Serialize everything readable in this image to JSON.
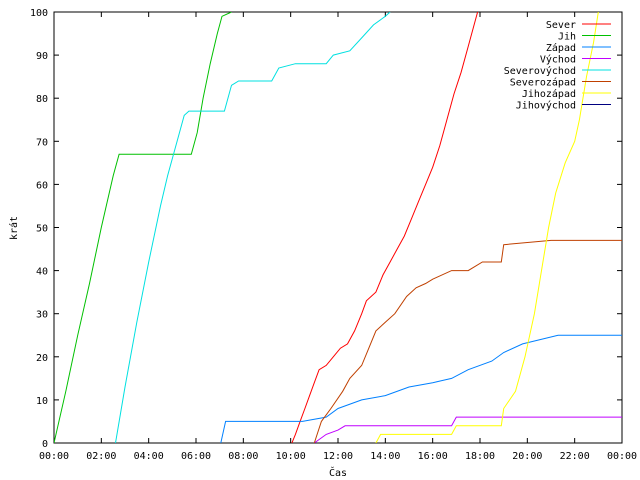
{
  "chart_data": {
    "type": "line",
    "xlabel": "Čas",
    "ylabel": "krát",
    "xlim": [
      0,
      24
    ],
    "ylim": [
      0,
      100
    ],
    "x_ticks": [
      "00:00",
      "02:00",
      "04:00",
      "06:00",
      "08:00",
      "10:00",
      "12:00",
      "14:00",
      "16:00",
      "18:00",
      "20:00",
      "22:00",
      "00:00"
    ],
    "y_ticks": [
      0,
      10,
      20,
      30,
      40,
      50,
      60,
      70,
      80,
      90,
      100
    ],
    "grid": false,
    "legend_position": "top-right",
    "series": [
      {
        "name": "Sever",
        "color": "#ff0000",
        "points": [
          [
            10.05,
            0
          ],
          [
            10.2,
            2
          ],
          [
            10.4,
            5
          ],
          [
            10.6,
            8
          ],
          [
            10.8,
            11
          ],
          [
            11.0,
            14
          ],
          [
            11.2,
            17
          ],
          [
            11.5,
            18
          ],
          [
            11.8,
            20
          ],
          [
            12.1,
            22
          ],
          [
            12.4,
            23
          ],
          [
            12.7,
            26
          ],
          [
            13.0,
            30
          ],
          [
            13.2,
            33
          ],
          [
            13.6,
            35
          ],
          [
            13.9,
            39
          ],
          [
            14.2,
            42
          ],
          [
            14.5,
            45
          ],
          [
            14.8,
            48
          ],
          [
            15.1,
            52
          ],
          [
            15.4,
            56
          ],
          [
            15.7,
            60
          ],
          [
            16.0,
            64
          ],
          [
            16.3,
            69
          ],
          [
            16.6,
            75
          ],
          [
            16.9,
            81
          ],
          [
            17.2,
            86
          ],
          [
            17.5,
            92
          ],
          [
            17.9,
            100
          ]
        ]
      },
      {
        "name": "Jih",
        "color": "#00c000",
        "points": [
          [
            0.0,
            0
          ],
          [
            0.5,
            12
          ],
          [
            1.0,
            25
          ],
          [
            1.5,
            37
          ],
          [
            2.0,
            50
          ],
          [
            2.5,
            62
          ],
          [
            2.75,
            67
          ],
          [
            5.8,
            67
          ],
          [
            6.05,
            72
          ],
          [
            6.3,
            80
          ],
          [
            6.6,
            88
          ],
          [
            6.9,
            95
          ],
          [
            7.1,
            99
          ],
          [
            7.5,
            100
          ]
        ]
      },
      {
        "name": "Západ",
        "color": "#0080ff",
        "points": [
          [
            7.05,
            0
          ],
          [
            7.25,
            5
          ],
          [
            10.5,
            5
          ],
          [
            11.5,
            6
          ],
          [
            12.0,
            8
          ],
          [
            13.0,
            10
          ],
          [
            14.0,
            11
          ],
          [
            15.0,
            13
          ],
          [
            16.0,
            14
          ],
          [
            16.8,
            15
          ],
          [
            17.5,
            17
          ],
          [
            18.5,
            19
          ],
          [
            19.0,
            21
          ],
          [
            19.8,
            23
          ],
          [
            21.3,
            25
          ],
          [
            24.0,
            25
          ]
        ]
      },
      {
        "name": "Východ",
        "color": "#c000ff",
        "points": [
          [
            11.0,
            0
          ],
          [
            11.5,
            2
          ],
          [
            12.0,
            3
          ],
          [
            12.3,
            4
          ],
          [
            16.8,
            4
          ],
          [
            17.0,
            6
          ],
          [
            24.0,
            6
          ]
        ]
      },
      {
        "name": "Severovýchod",
        "color": "#00e0e0",
        "points": [
          [
            2.6,
            0
          ],
          [
            3.0,
            13
          ],
          [
            3.5,
            28
          ],
          [
            4.0,
            42
          ],
          [
            4.5,
            55
          ],
          [
            4.8,
            62
          ],
          [
            5.2,
            70
          ],
          [
            5.5,
            76
          ],
          [
            5.7,
            77
          ],
          [
            7.2,
            77
          ],
          [
            7.5,
            83
          ],
          [
            7.8,
            84
          ],
          [
            9.2,
            84
          ],
          [
            9.5,
            87
          ],
          [
            10.2,
            88
          ],
          [
            11.5,
            88
          ],
          [
            11.8,
            90
          ],
          [
            12.5,
            91
          ],
          [
            13.0,
            94
          ],
          [
            13.5,
            97
          ],
          [
            14.0,
            99
          ],
          [
            14.2,
            100
          ]
        ]
      },
      {
        "name": "Severozápad",
        "color": "#c04000",
        "points": [
          [
            11.0,
            0
          ],
          [
            11.3,
            5
          ],
          [
            11.7,
            8
          ],
          [
            12.2,
            12
          ],
          [
            12.5,
            15
          ],
          [
            13.0,
            18
          ],
          [
            13.3,
            22
          ],
          [
            13.6,
            26
          ],
          [
            14.0,
            28
          ],
          [
            14.4,
            30
          ],
          [
            14.9,
            34
          ],
          [
            15.3,
            36
          ],
          [
            15.7,
            37
          ],
          [
            16.0,
            38
          ],
          [
            16.8,
            40
          ],
          [
            17.5,
            40
          ],
          [
            18.1,
            42
          ],
          [
            18.9,
            42
          ],
          [
            19.0,
            46
          ],
          [
            21.0,
            47
          ],
          [
            24.0,
            47
          ]
        ]
      },
      {
        "name": "Jihozápad",
        "color": "#ffff00",
        "points": [
          [
            13.6,
            0
          ],
          [
            13.8,
            2
          ],
          [
            16.8,
            2
          ],
          [
            17.0,
            4
          ],
          [
            18.9,
            4
          ],
          [
            19.0,
            8
          ],
          [
            19.5,
            12
          ],
          [
            19.9,
            20
          ],
          [
            20.3,
            30
          ],
          [
            20.6,
            40
          ],
          [
            20.9,
            50
          ],
          [
            21.2,
            58
          ],
          [
            21.6,
            65
          ],
          [
            22.0,
            70
          ],
          [
            22.2,
            75
          ],
          [
            22.5,
            85
          ],
          [
            22.8,
            93
          ],
          [
            23.0,
            100
          ]
        ]
      },
      {
        "name": "Jihovýchod",
        "color": "#000080",
        "points": []
      }
    ]
  }
}
